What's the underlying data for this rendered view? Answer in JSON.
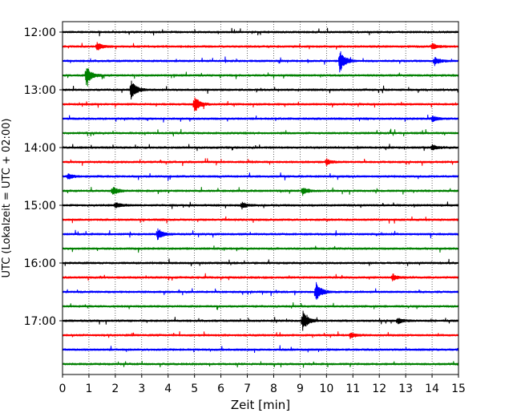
{
  "chart_data": {
    "type": "line",
    "xlabel": "Zeit  [min]",
    "ylabel": "UTC (Lokalzeit = UTC + 02:00)",
    "xlim": [
      0,
      15
    ],
    "x_ticks": [
      "0",
      "1",
      "2",
      "3",
      "4",
      "5",
      "6",
      "7",
      "8",
      "9",
      "10",
      "11",
      "12",
      "13",
      "14",
      "15"
    ],
    "y_ticks": [
      "12:00",
      "13:00",
      "14:00",
      "15:00",
      "16:00",
      "17:00"
    ],
    "trace_interval_min": 15,
    "first_trace": "12:00",
    "last_trace": "17:45",
    "grid": "vertical dotted at each minute",
    "colors": [
      "#000000",
      "#ff0000",
      "#0000ff",
      "#008000"
    ],
    "series": [
      {
        "start": "12:00",
        "color": "#000000",
        "events": []
      },
      {
        "start": "12:15",
        "color": "#ff0000",
        "events": [
          {
            "t": 1.3,
            "amp": 0.4
          },
          {
            "t": 14.0,
            "amp": 0.3
          }
        ]
      },
      {
        "start": "12:30",
        "color": "#0000ff",
        "events": [
          {
            "t": 10.5,
            "amp": 1.2
          },
          {
            "t": 14.1,
            "amp": 0.4
          }
        ]
      },
      {
        "start": "12:45",
        "color": "#008000",
        "events": [
          {
            "t": 0.9,
            "amp": 1.0
          }
        ]
      },
      {
        "start": "13:00",
        "color": "#000000",
        "events": [
          {
            "t": 2.6,
            "amp": 1.0
          }
        ]
      },
      {
        "start": "13:15",
        "color": "#ff0000",
        "events": [
          {
            "t": 5.0,
            "amp": 0.9
          }
        ]
      },
      {
        "start": "13:30",
        "color": "#0000ff",
        "events": [
          {
            "t": 14.0,
            "amp": 0.3
          }
        ]
      },
      {
        "start": "13:45",
        "color": "#008000",
        "events": []
      },
      {
        "start": "14:00",
        "color": "#000000",
        "events": [
          {
            "t": 14.0,
            "amp": 0.3
          }
        ]
      },
      {
        "start": "14:15",
        "color": "#ff0000",
        "events": [
          {
            "t": 10.0,
            "amp": 0.3
          }
        ]
      },
      {
        "start": "14:30",
        "color": "#0000ff",
        "events": [
          {
            "t": 0.2,
            "amp": 0.3
          }
        ]
      },
      {
        "start": "14:45",
        "color": "#008000",
        "events": [
          {
            "t": 1.9,
            "amp": 0.4
          },
          {
            "t": 9.1,
            "amp": 0.4
          }
        ]
      },
      {
        "start": "15:00",
        "color": "#000000",
        "events": [
          {
            "t": 2.0,
            "amp": 0.3
          },
          {
            "t": 6.8,
            "amp": 0.3
          }
        ]
      },
      {
        "start": "15:15",
        "color": "#ff0000",
        "events": []
      },
      {
        "start": "15:30",
        "color": "#0000ff",
        "events": [
          {
            "t": 3.6,
            "amp": 0.6
          }
        ]
      },
      {
        "start": "15:45",
        "color": "#008000",
        "events": []
      },
      {
        "start": "16:00",
        "color": "#000000",
        "events": []
      },
      {
        "start": "16:15",
        "color": "#ff0000",
        "events": [
          {
            "t": 12.5,
            "amp": 0.3
          }
        ]
      },
      {
        "start": "16:30",
        "color": "#0000ff",
        "events": [
          {
            "t": 9.6,
            "amp": 1.0
          }
        ]
      },
      {
        "start": "16:45",
        "color": "#008000",
        "events": []
      },
      {
        "start": "17:00",
        "color": "#000000",
        "events": [
          {
            "t": 9.1,
            "amp": 1.0
          },
          {
            "t": 12.7,
            "amp": 0.3
          }
        ]
      },
      {
        "start": "17:15",
        "color": "#ff0000",
        "events": [
          {
            "t": 10.9,
            "amp": 0.3
          }
        ]
      },
      {
        "start": "17:30",
        "color": "#0000ff",
        "events": [
          {
            "t": 15.0,
            "amp": 0.2
          }
        ]
      },
      {
        "start": "17:45",
        "color": "#008000",
        "events": []
      }
    ]
  }
}
